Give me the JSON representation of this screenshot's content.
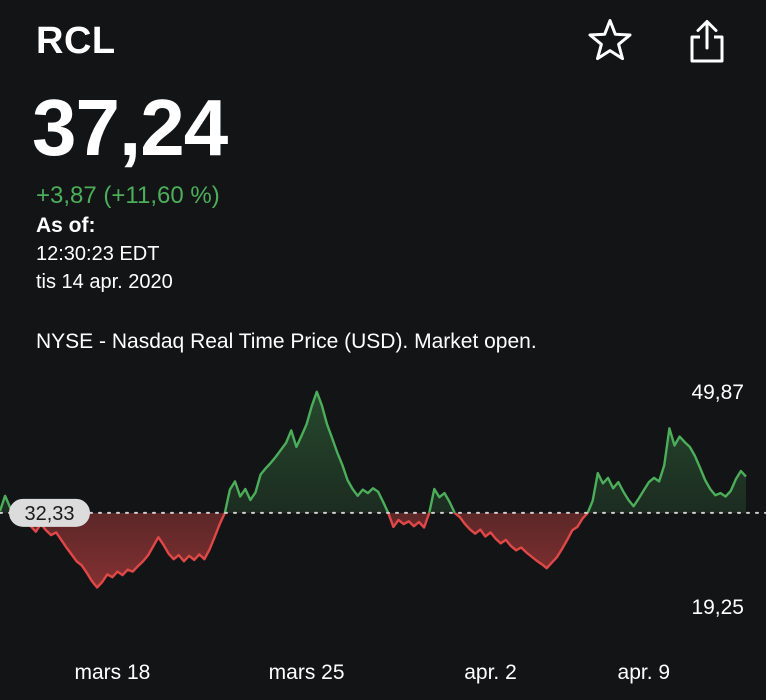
{
  "header": {
    "ticker": "RCL",
    "favorite_icon": "star-icon",
    "share_icon": "share-icon"
  },
  "quote": {
    "price": "37,24",
    "change": "+3,87 (+11,60 %)",
    "as_of_label": "As of:",
    "time": "12:30:23 EDT",
    "date": "tis 14 apr. 2020",
    "market_info": "NYSE - Nasdaq Real Time Price (USD). Market open."
  },
  "colors": {
    "up": "#4cae5a",
    "down": "#e04848",
    "background": "#131416"
  },
  "chart_data": {
    "type": "area",
    "baseline": 32.33,
    "baseline_label": "32,33",
    "y_max_label": "49,87",
    "y_min_label": "19,25",
    "ylim": [
      19.25,
      49.87
    ],
    "x_labels": [
      "mars 18",
      "mars 25",
      "apr. 2",
      "apr. 9"
    ],
    "x_label_indices": [
      22,
      60,
      96,
      126
    ],
    "series": [
      {
        "values": [
          32.6,
          34.8,
          33.1,
          32.2,
          31.8,
          31.2,
          30.4,
          29.6,
          30.7,
          29.8,
          29.1,
          29.5,
          28.4,
          27.3,
          26.3,
          25.3,
          24.7,
          23.6,
          22.4,
          21.5,
          22.3,
          23.4,
          23.0,
          23.8,
          23.3,
          24.1,
          23.8,
          24.6,
          25.3,
          26.2,
          27.5,
          28.8,
          27.7,
          26.4,
          25.6,
          26.2,
          25.3,
          26.1,
          25.5,
          26.3,
          25.6,
          27.0,
          28.8,
          30.7,
          32.3,
          35.7,
          36.9,
          34.7,
          35.8,
          34.2,
          35.3,
          37.9,
          38.8,
          39.6,
          40.5,
          41.5,
          42.5,
          44.3,
          41.9,
          43.5,
          45.2,
          47.8,
          49.9,
          47.9,
          45.2,
          43.2,
          41.1,
          39.3,
          37.1,
          35.8,
          34.8,
          35.7,
          35.2,
          35.9,
          35.4,
          33.9,
          32.3,
          30.3,
          31.3,
          30.7,
          31.1,
          30.4,
          31.0,
          30.2,
          32.3,
          35.8,
          34.6,
          35.2,
          33.9,
          32.3,
          31.7,
          30.7,
          29.9,
          29.3,
          29.9,
          28.9,
          29.5,
          28.6,
          27.9,
          28.4,
          27.5,
          26.9,
          27.3,
          26.6,
          26.0,
          25.4,
          24.9,
          24.3,
          25.1,
          25.9,
          27.1,
          28.4,
          29.8,
          30.3,
          31.5,
          32.3,
          34.1,
          38.1,
          36.6,
          37.4,
          35.9,
          36.8,
          35.4,
          34.2,
          33.3,
          34.4,
          35.6,
          36.8,
          37.4,
          36.9,
          39.2,
          44.6,
          42.1,
          43.4,
          42.6,
          41.9,
          40.6,
          38.9,
          37.1,
          35.8,
          34.9,
          35.2,
          34.7,
          35.5,
          37.2,
          38.4,
          37.6
        ]
      }
    ]
  }
}
